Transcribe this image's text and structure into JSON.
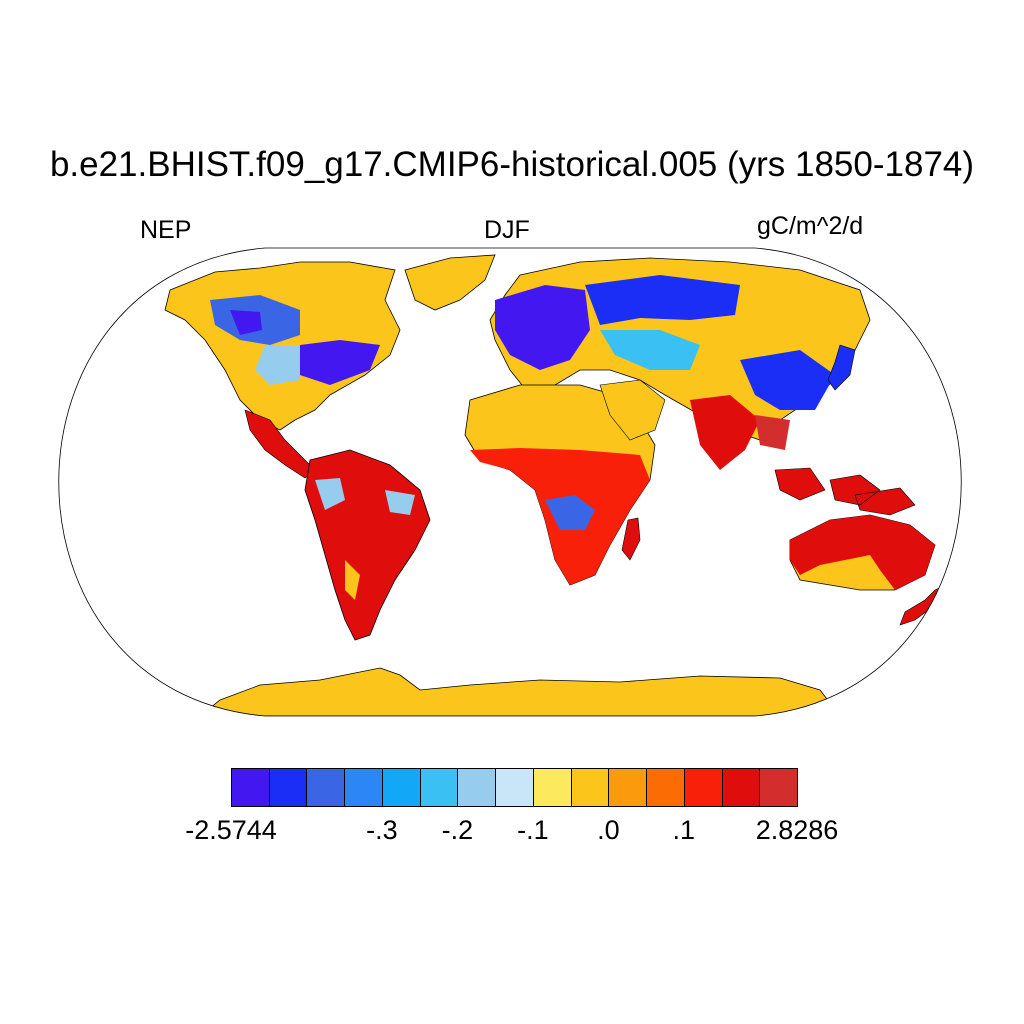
{
  "title": "b.e21.BHIST.f09_g17.CMIP6-historical.005 (yrs 1850-1874)",
  "left_label": "NEP",
  "center_label": "DJF",
  "right_label": "gC/m^2/d",
  "colorbar": {
    "colors": [
      "#4318f0",
      "#1a2ef5",
      "#3a66e6",
      "#2d86f5",
      "#13a8f7",
      "#3ac0f2",
      "#96cdee",
      "#c8e6f7",
      "#fde95e",
      "#fbc51c",
      "#fc9a0d",
      "#fc6c05",
      "#f9200a",
      "#e00d0d",
      "#d42d2d"
    ],
    "labels": [
      "-2.5744",
      "-.3",
      "-.2",
      "-.1",
      ".0",
      ".1",
      "2.8286"
    ],
    "label_boundaries": [
      0,
      4,
      6,
      8,
      10,
      12,
      15
    ]
  },
  "legend_items": {
    "land_color": "#fbc51c",
    "outline_color": "#000000"
  }
}
